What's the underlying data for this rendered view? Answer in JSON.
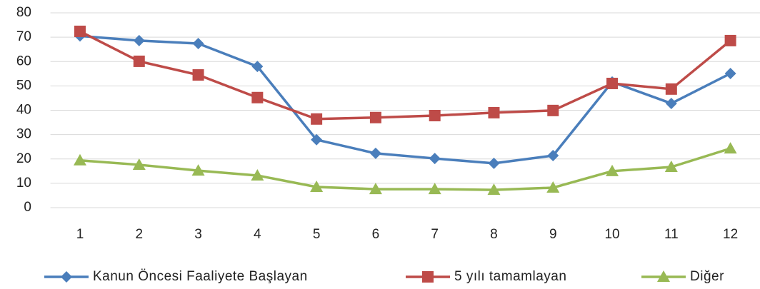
{
  "chart_data": {
    "type": "line",
    "categories": [
      "1",
      "2",
      "3",
      "4",
      "5",
      "6",
      "7",
      "8",
      "9",
      "10",
      "11",
      "12"
    ],
    "series": [
      {
        "name": "Kanun Öncesi Faaliyete Başlayan",
        "color": "#4a7ebb",
        "marker": "diamond",
        "values": [
          70.5,
          68.6,
          67.4,
          58,
          27.9,
          22.3,
          20.2,
          18.2,
          21.4,
          51.6,
          42.8,
          55.1
        ]
      },
      {
        "name": "5 yılı tamamlayan",
        "color": "#be4b48",
        "marker": "square",
        "values": [
          72.4,
          60.1,
          54.5,
          45.2,
          36.4,
          37,
          37.8,
          39,
          39.9,
          51,
          48.7,
          68.6
        ]
      },
      {
        "name": "Diğer",
        "color": "#98b954",
        "marker": "triangle",
        "values": [
          19.4,
          17.6,
          15.2,
          13.2,
          8.5,
          7.6,
          7.6,
          7.3,
          8.2,
          15,
          16.7,
          24.3
        ]
      }
    ],
    "ylim": [
      0,
      80
    ],
    "yticks": [
      0,
      10,
      20,
      30,
      40,
      50,
      60,
      70,
      80
    ],
    "grid": true,
    "legend": "bottom"
  }
}
